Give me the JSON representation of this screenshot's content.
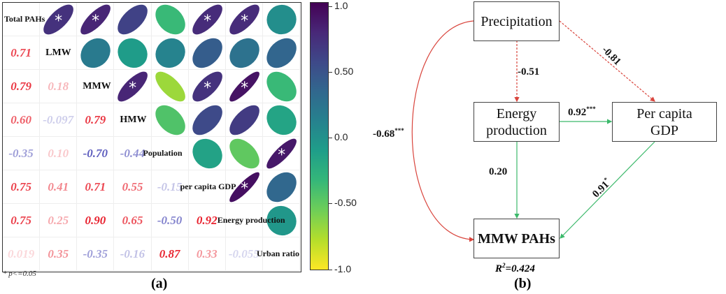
{
  "chart_data": {
    "type": "heatmap",
    "variables": [
      "Total PAHs",
      "LMW",
      "MMW",
      "HMW",
      "Population",
      "per capita GDP",
      "Energy production",
      "Urban ratio"
    ],
    "lower_triangle_labels": [
      [],
      [
        "0.71"
      ],
      [
        "0.79",
        "0.18"
      ],
      [
        "0.60",
        "-0.097",
        "0.79"
      ],
      [
        "-0.35",
        "0.10",
        "-0.70",
        "-0.44"
      ],
      [
        "0.75",
        "0.41",
        "0.71",
        "0.55",
        "-0.15"
      ],
      [
        "0.75",
        "0.25",
        "0.90",
        "0.65",
        "-0.50",
        "0.92"
      ],
      [
        "0.019",
        "0.35",
        "-0.35",
        "-0.16",
        "0.87",
        "0.33",
        "-0.055"
      ]
    ],
    "significant_pairs": [
      [
        0,
        1
      ],
      [
        0,
        2
      ],
      [
        0,
        5
      ],
      [
        0,
        6
      ],
      [
        2,
        3
      ],
      [
        2,
        5
      ],
      [
        2,
        6
      ],
      [
        4,
        7
      ],
      [
        5,
        6
      ]
    ],
    "colorbar": {
      "ticks": [
        "1.0",
        "0.50",
        "0.0",
        "-0.50",
        "-1.0"
      ],
      "range": [
        -1,
        1
      ],
      "colormap": "viridis reversed",
      "high_color": "#440154",
      "low_color": "#fde725"
    },
    "positive_text_color": "#e8212e",
    "negative_text_color": "#3a3ab0",
    "significance_note": "* p<=0.05",
    "panel_label": "(a)"
  },
  "path_diagram": {
    "nodes": {
      "precip": "Precipitation",
      "energy1": "Energy",
      "energy2": "production",
      "gdp1": "Per capita",
      "gdp2": "GDP",
      "mmw": "MMW PAHs"
    },
    "edges": {
      "precip_mmw": {
        "value": "-0.68",
        "sig": "***",
        "style": "solid",
        "color": "#d9453d"
      },
      "precip_energy": {
        "value": "-0.51",
        "sig": "",
        "style": "dashed",
        "color": "#d9453d"
      },
      "precip_gdp": {
        "value": "-0.81",
        "sig": "",
        "style": "dashed",
        "color": "#d9453d"
      },
      "energy_gdp": {
        "value": "0.92",
        "sig": "***",
        "style": "solid",
        "color": "#3cb96b"
      },
      "energy_mmw": {
        "value": "0.20",
        "sig": "",
        "style": "solid",
        "color": "#3cb96b"
      },
      "gdp_mmw": {
        "value": "0.91",
        "sig": "*",
        "style": "solid",
        "color": "#3cb96b"
      }
    },
    "r2_label": "R",
    "r2_sup": "2",
    "r2_value": "=0.424",
    "panel_label": "(b)"
  }
}
